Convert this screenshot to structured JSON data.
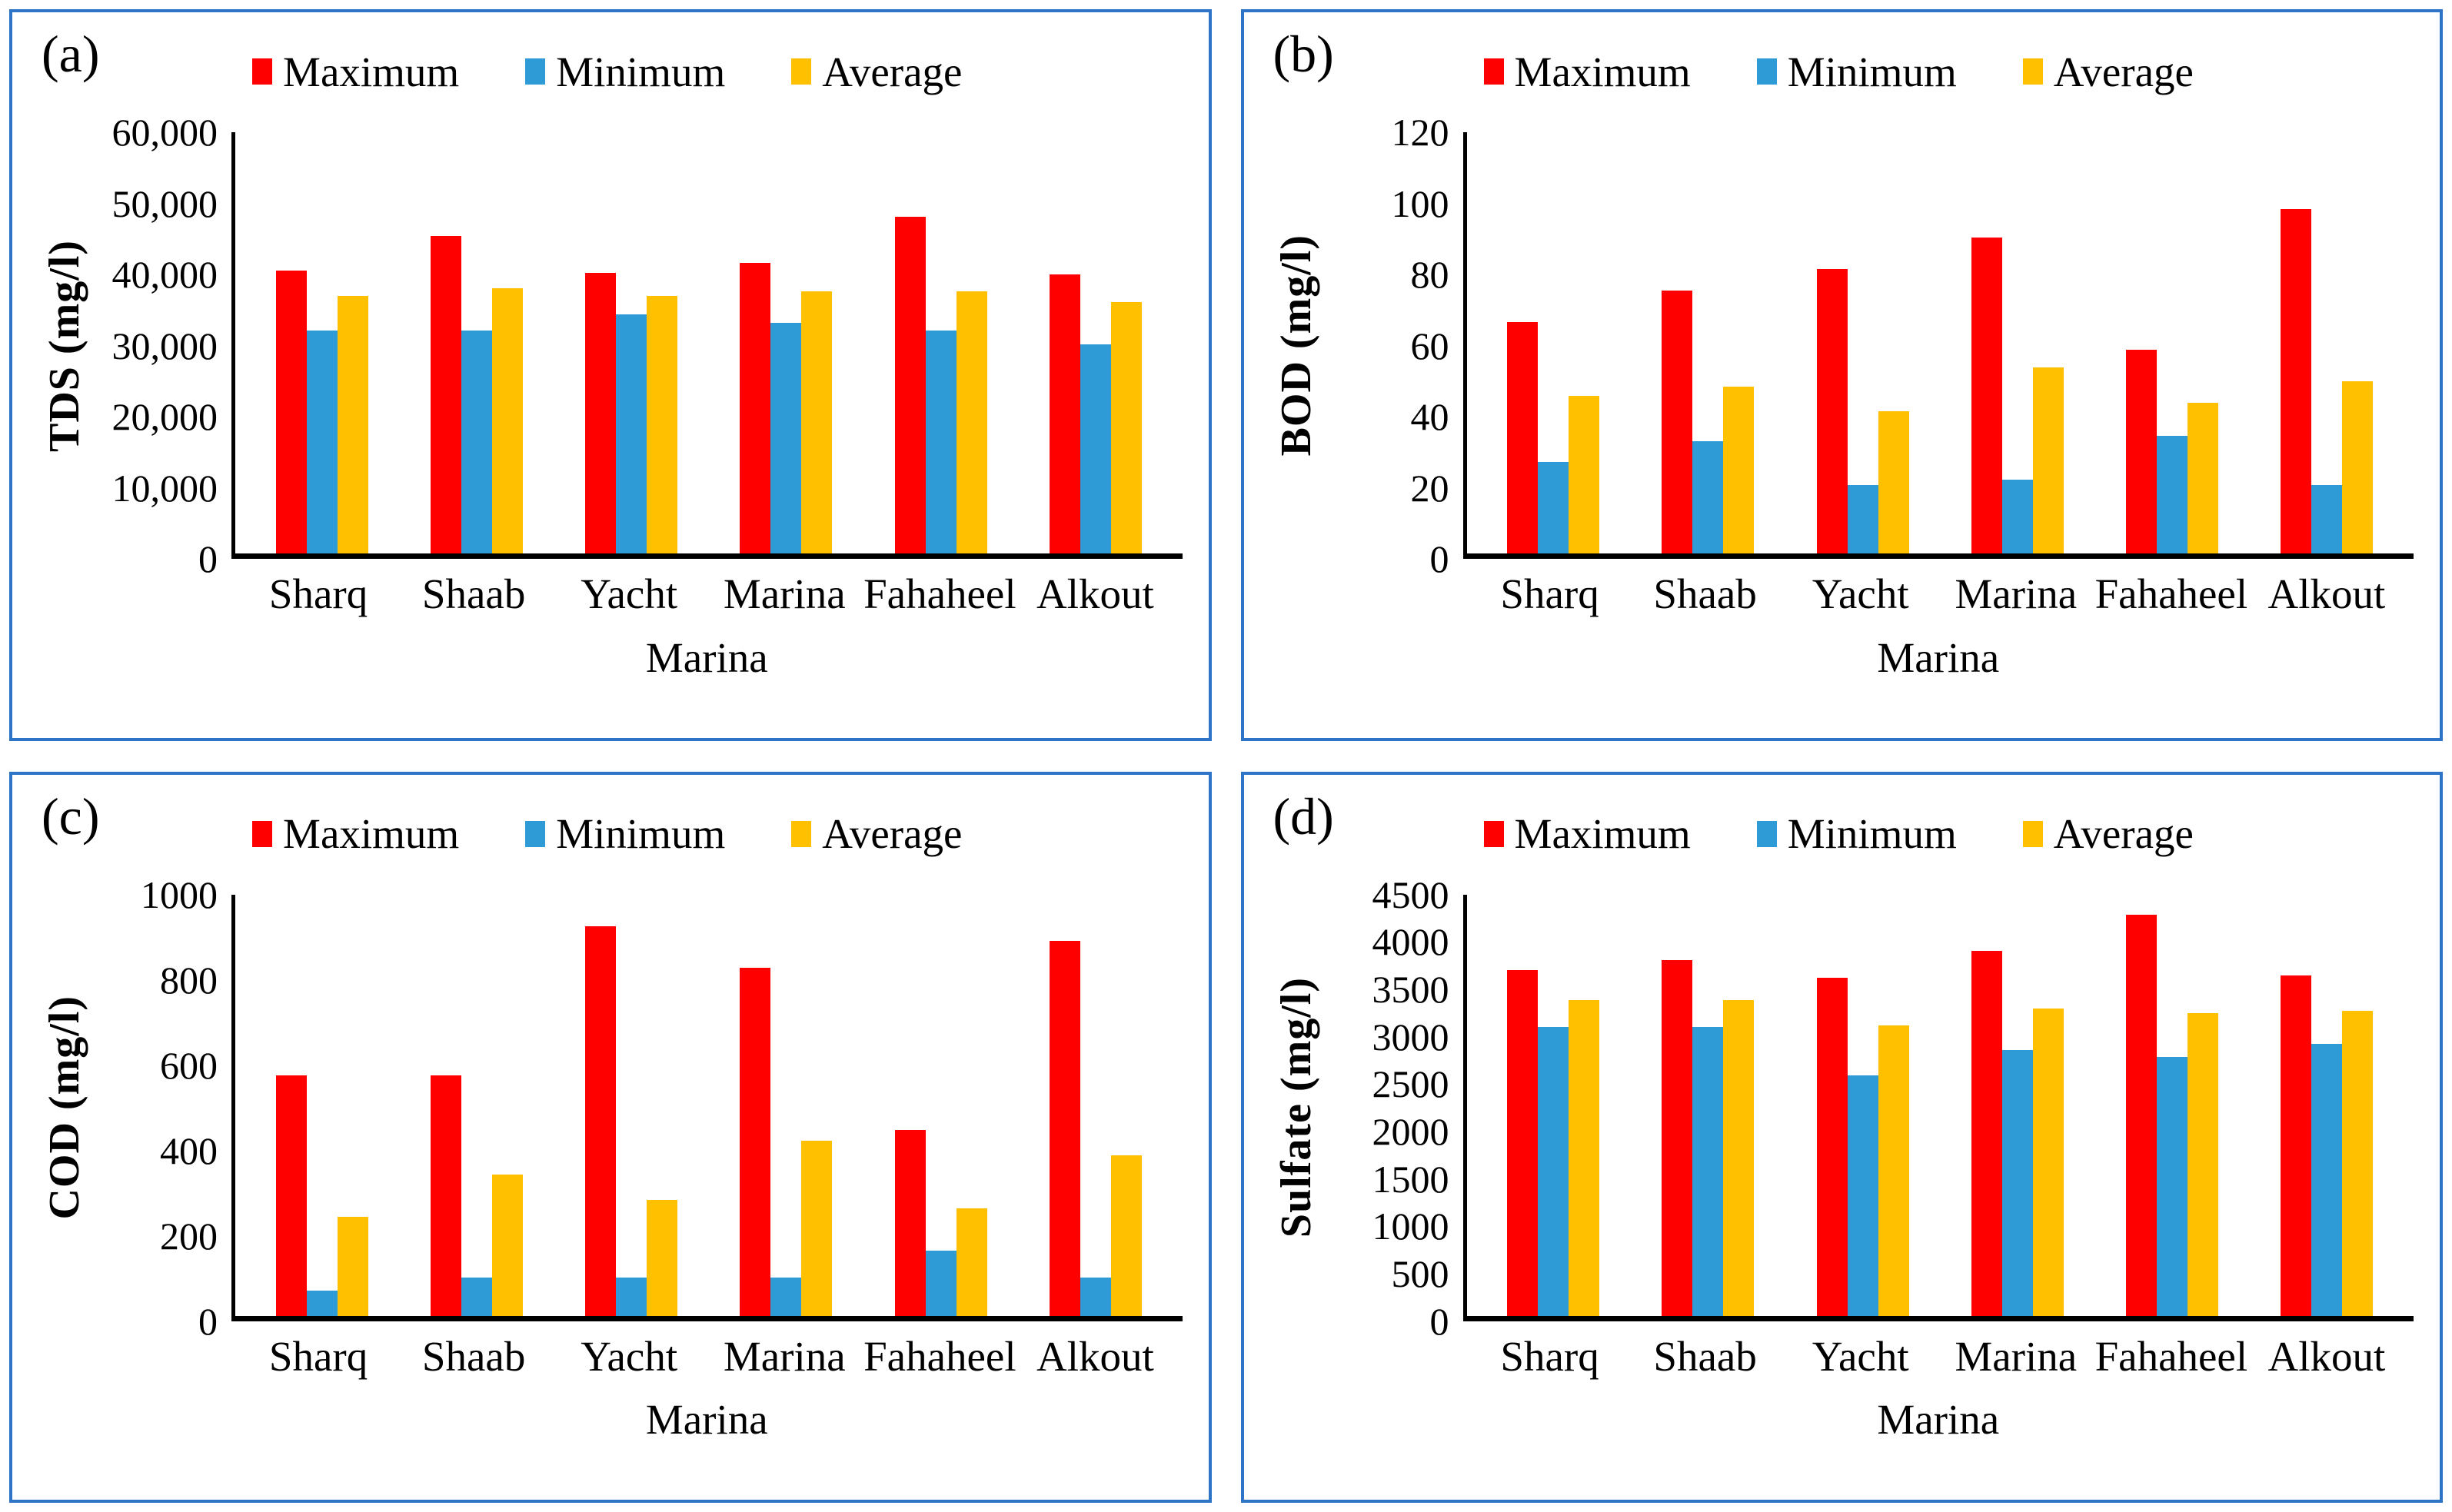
{
  "colors": {
    "maximum": "#ff0000",
    "minimum": "#2e9bd6",
    "average": "#ffc000",
    "panel_border": "#2e74c6",
    "axis": "#000000"
  },
  "chart_data": [
    {
      "type": "bar",
      "panel_label": "(a)",
      "ylabel": "TDS (mg/l)",
      "xlabel": "Marina",
      "categories": [
        "Sharq",
        "Shaab",
        "Yacht",
        "Marina",
        "Fahaheel",
        "Alkout"
      ],
      "ylim": [
        0,
        60000
      ],
      "grid": false,
      "legend_position": "top",
      "yticks": [
        {
          "v": 0,
          "label": "0"
        },
        {
          "v": 10000,
          "label": "10,000"
        },
        {
          "v": 20000,
          "label": "20,000"
        },
        {
          "v": 30000,
          "label": "30,000"
        },
        {
          "v": 40000,
          "label": "40,000"
        },
        {
          "v": 50000,
          "label": "50,000"
        },
        {
          "v": 60000,
          "label": "60,000"
        }
      ],
      "series": [
        {
          "name": "Maximum",
          "color": "#ff0000",
          "values": [
            40300,
            45200,
            40000,
            41400,
            48000,
            39800
          ]
        },
        {
          "name": "Minimum",
          "color": "#2e9bd6",
          "values": [
            31800,
            31800,
            34000,
            32800,
            31800,
            29800
          ]
        },
        {
          "name": "Average",
          "color": "#ffc000",
          "values": [
            36700,
            37800,
            36700,
            37300,
            37300,
            35800
          ]
        }
      ]
    },
    {
      "type": "bar",
      "panel_label": "(b)",
      "ylabel": "BOD (mg/l)",
      "xlabel": "Marina",
      "categories": [
        "Sharq",
        "Shaab",
        "Yacht",
        "Marina",
        "Fahaheel",
        "Alkout"
      ],
      "ylim": [
        0,
        120
      ],
      "grid": false,
      "legend_position": "top",
      "yticks": [
        {
          "v": 0,
          "label": "0"
        },
        {
          "v": 20,
          "label": "20"
        },
        {
          "v": 40,
          "label": "40"
        },
        {
          "v": 60,
          "label": "60"
        },
        {
          "v": 80,
          "label": "80"
        },
        {
          "v": 100,
          "label": "100"
        },
        {
          "v": 120,
          "label": "120"
        }
      ],
      "series": [
        {
          "name": "Maximum",
          "color": "#ff0000",
          "values": [
            66,
            75,
            81,
            90,
            58,
            98
          ]
        },
        {
          "name": "Minimum",
          "color": "#2e9bd6",
          "values": [
            26,
            32,
            19.5,
            21,
            33.5,
            19.5
          ]
        },
        {
          "name": "Average",
          "color": "#ffc000",
          "values": [
            45,
            47.5,
            40.5,
            53,
            43,
            49
          ]
        }
      ]
    },
    {
      "type": "bar",
      "panel_label": "(c)",
      "ylabel": "COD (mg/l)",
      "xlabel": "Marina",
      "categories": [
        "Sharq",
        "Shaab",
        "Yacht",
        "Marina",
        "Fahaheel",
        "Alkout"
      ],
      "ylim": [
        0,
        1000
      ],
      "grid": false,
      "legend_position": "top",
      "yticks": [
        {
          "v": 0,
          "label": "0"
        },
        {
          "v": 200,
          "label": "200"
        },
        {
          "v": 400,
          "label": "400"
        },
        {
          "v": 600,
          "label": "600"
        },
        {
          "v": 800,
          "label": "800"
        },
        {
          "v": 1000,
          "label": "1000"
        }
      ],
      "series": [
        {
          "name": "Maximum",
          "color": "#ff0000",
          "values": [
            570,
            570,
            925,
            825,
            440,
            890
          ]
        },
        {
          "name": "Minimum",
          "color": "#2e9bd6",
          "values": [
            60,
            90,
            90,
            90,
            155,
            90
          ]
        },
        {
          "name": "Average",
          "color": "#ffc000",
          "values": [
            235,
            335,
            275,
            415,
            255,
            380
          ]
        }
      ]
    },
    {
      "type": "bar",
      "panel_label": "(d)",
      "ylabel": "Sulfate (mg/l)",
      "xlabel": "Marina",
      "categories": [
        "Sharq",
        "Shaab",
        "Yacht",
        "Marina",
        "Fahaheel",
        "Alkout"
      ],
      "ylim": [
        0,
        4500
      ],
      "grid": false,
      "legend_position": "top",
      "yticks": [
        {
          "v": 0,
          "label": "0"
        },
        {
          "v": 500,
          "label": "500"
        },
        {
          "v": 1000,
          "label": "1000"
        },
        {
          "v": 1500,
          "label": "1500"
        },
        {
          "v": 2000,
          "label": "2000"
        },
        {
          "v": 2500,
          "label": "2500"
        },
        {
          "v": 3000,
          "label": "3000"
        },
        {
          "v": 3500,
          "label": "3500"
        },
        {
          "v": 4000,
          "label": "4000"
        },
        {
          "v": 4500,
          "label": "4500"
        }
      ],
      "series": [
        {
          "name": "Maximum",
          "color": "#ff0000",
          "values": [
            3690,
            3800,
            3610,
            3900,
            4280,
            3630
          ]
        },
        {
          "name": "Minimum",
          "color": "#2e9bd6",
          "values": [
            3080,
            3080,
            2570,
            2840,
            2760,
            2900
          ]
        },
        {
          "name": "Average",
          "color": "#ffc000",
          "values": [
            3370,
            3370,
            3100,
            3280,
            3230,
            3260
          ]
        }
      ]
    }
  ]
}
